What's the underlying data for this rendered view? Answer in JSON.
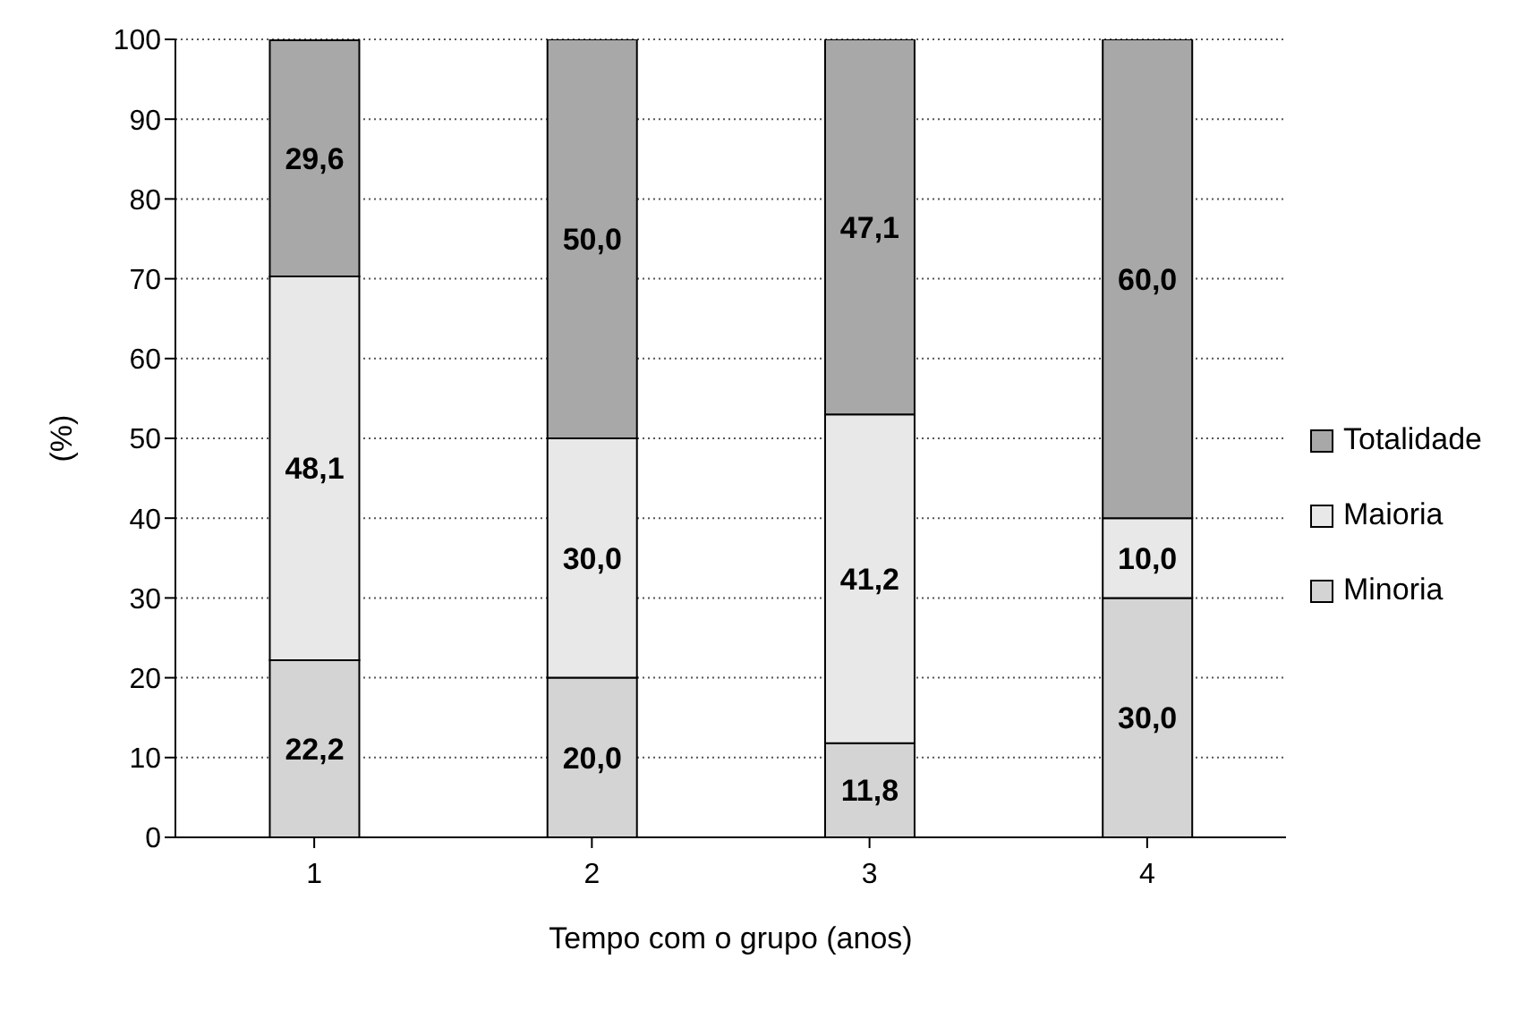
{
  "chart_data": {
    "type": "bar",
    "stacked": true,
    "xlabel": "Tempo com o grupo (anos)",
    "ylabel": "(%)",
    "categories": [
      "1",
      "2",
      "3",
      "4"
    ],
    "ylim": [
      0,
      100
    ],
    "yticks": [
      0,
      10,
      20,
      30,
      40,
      50,
      60,
      70,
      80,
      90,
      100
    ],
    "grid": "y",
    "legend": "right",
    "series": [
      {
        "name": "Minoria",
        "color": "#d4d4d4",
        "values": [
          22.2,
          20.0,
          11.8,
          30.0
        ],
        "value_labels": [
          "22,2",
          "20,0",
          "11,8",
          "30,0"
        ]
      },
      {
        "name": "Maioria",
        "color": "#e8e8e8",
        "values": [
          48.1,
          30.0,
          41.2,
          10.0
        ],
        "value_labels": [
          "48,1",
          "30,0",
          "41,2",
          "10,0"
        ]
      },
      {
        "name": "Totalidade",
        "color": "#a8a8a8",
        "values": [
          29.6,
          50.0,
          47.1,
          60.0
        ],
        "value_labels": [
          "29,6",
          "50,0",
          "47,1",
          "60,0"
        ]
      }
    ]
  }
}
